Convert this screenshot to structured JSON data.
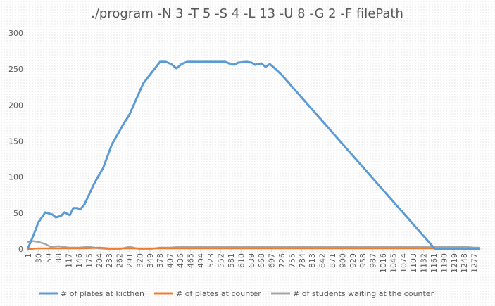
{
  "chart_data": {
    "type": "line",
    "title": "./program -N 3 -T 5 -S 4 -L 13 -U 8 -G 2 -F filePath",
    "xlabel": "",
    "ylabel": "",
    "xlim": [
      1,
      1300
    ],
    "ylim": [
      0,
      300
    ],
    "yticks": [
      0,
      50,
      100,
      150,
      200,
      250,
      300
    ],
    "xticks": [
      "1",
      "30",
      "59",
      "88",
      "117",
      "146",
      "175",
      "204",
      "233",
      "262",
      "291",
      "320",
      "349",
      "378",
      "407",
      "436",
      "465",
      "494",
      "523",
      "552",
      "581",
      "610",
      "639",
      "668",
      "697",
      "726",
      "755",
      "784",
      "813",
      "842",
      "871",
      "900",
      "929",
      "958",
      "987",
      "1016",
      "1045",
      "1074",
      "1103",
      "1132",
      "1161",
      "1190",
      "1219",
      "1248",
      "1277"
    ],
    "grid": false,
    "legend_position": "bottom",
    "series": [
      {
        "name": "# of plates at kicthen",
        "color": "#5b9bd5",
        "points": [
          [
            1,
            2
          ],
          [
            15,
            18
          ],
          [
            30,
            37
          ],
          [
            50,
            51
          ],
          [
            70,
            48
          ],
          [
            80,
            44
          ],
          [
            95,
            46
          ],
          [
            105,
            51
          ],
          [
            120,
            47
          ],
          [
            130,
            57
          ],
          [
            142,
            57
          ],
          [
            150,
            55
          ],
          [
            162,
            62
          ],
          [
            190,
            91
          ],
          [
            205,
            104
          ],
          [
            215,
            112
          ],
          [
            240,
            145
          ],
          [
            260,
            162
          ],
          [
            275,
            175
          ],
          [
            290,
            186
          ],
          [
            330,
            230
          ],
          [
            378,
            260
          ],
          [
            395,
            260
          ],
          [
            410,
            257
          ],
          [
            425,
            251
          ],
          [
            440,
            257
          ],
          [
            455,
            260
          ],
          [
            494,
            260
          ],
          [
            523,
            260
          ],
          [
            565,
            260
          ],
          [
            575,
            258
          ],
          [
            590,
            256
          ],
          [
            602,
            259
          ],
          [
            625,
            260
          ],
          [
            640,
            259
          ],
          [
            650,
            256
          ],
          [
            668,
            258
          ],
          [
            680,
            253
          ],
          [
            692,
            257
          ],
          [
            704,
            252
          ],
          [
            726,
            242
          ],
          [
            755,
            226
          ],
          [
            813,
            194
          ],
          [
            842,
            178
          ],
          [
            900,
            146
          ],
          [
            958,
            114
          ],
          [
            1016,
            82
          ],
          [
            1074,
            50
          ],
          [
            1132,
            18
          ],
          [
            1165,
            0
          ],
          [
            1290,
            0
          ]
        ]
      },
      {
        "name": "# of plates at counter",
        "color": "#ed7d31",
        "points": [
          [
            1,
            0
          ],
          [
            30,
            1
          ],
          [
            100,
            1
          ],
          [
            160,
            1
          ],
          [
            204,
            2
          ],
          [
            233,
            1
          ],
          [
            291,
            1
          ],
          [
            378,
            1
          ],
          [
            436,
            1
          ],
          [
            523,
            1
          ],
          [
            610,
            1
          ],
          [
            697,
            1
          ],
          [
            784,
            1
          ],
          [
            871,
            1
          ],
          [
            958,
            1
          ],
          [
            1045,
            1
          ],
          [
            1132,
            1
          ],
          [
            1219,
            1
          ],
          [
            1290,
            1
          ]
        ]
      },
      {
        "name": "# of students waiting at the counter",
        "color": "#a5a5a5",
        "points": [
          [
            1,
            10
          ],
          [
            15,
            11
          ],
          [
            30,
            10
          ],
          [
            50,
            7
          ],
          [
            65,
            3
          ],
          [
            88,
            4
          ],
          [
            117,
            2
          ],
          [
            146,
            2
          ],
          [
            175,
            3
          ],
          [
            204,
            1
          ],
          [
            233,
            0
          ],
          [
            262,
            0
          ],
          [
            291,
            3
          ],
          [
            320,
            0
          ],
          [
            349,
            0
          ],
          [
            378,
            2
          ],
          [
            407,
            2
          ],
          [
            436,
            3
          ],
          [
            465,
            3
          ],
          [
            494,
            3
          ],
          [
            523,
            3
          ],
          [
            552,
            3
          ],
          [
            581,
            3
          ],
          [
            610,
            3
          ],
          [
            639,
            3
          ],
          [
            668,
            3
          ],
          [
            697,
            3
          ],
          [
            726,
            3
          ],
          [
            755,
            3
          ],
          [
            784,
            3
          ],
          [
            813,
            3
          ],
          [
            842,
            3
          ],
          [
            871,
            3
          ],
          [
            900,
            3
          ],
          [
            929,
            3
          ],
          [
            958,
            3
          ],
          [
            987,
            3
          ],
          [
            1016,
            3
          ],
          [
            1045,
            3
          ],
          [
            1074,
            3
          ],
          [
            1103,
            3
          ],
          [
            1132,
            3
          ],
          [
            1161,
            3
          ],
          [
            1190,
            3
          ],
          [
            1219,
            3
          ],
          [
            1248,
            3
          ],
          [
            1277,
            2
          ],
          [
            1290,
            2
          ]
        ]
      }
    ]
  }
}
